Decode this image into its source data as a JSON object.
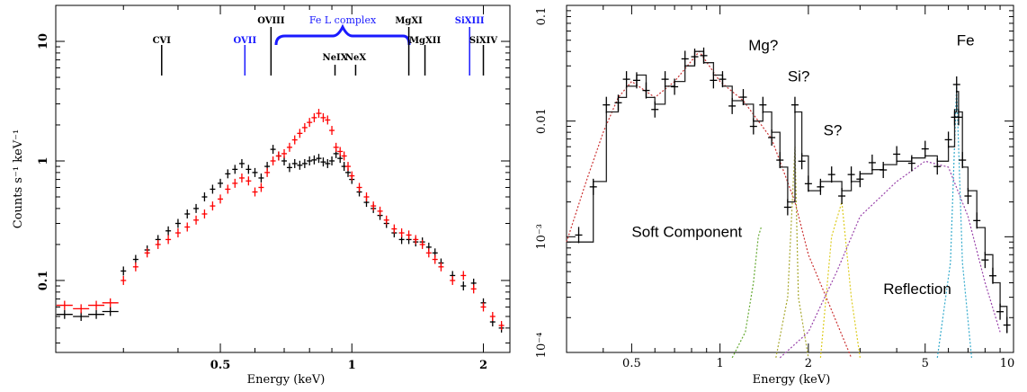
{
  "chart_data": [
    {
      "type": "scatter",
      "panel": "left",
      "xlabel": "Energy (keV)",
      "ylabel": "Counts s⁻¹ keV⁻¹",
      "xscale": "log",
      "yscale": "log",
      "xlim": [
        0.21,
        2.3
      ],
      "ylim": [
        0.025,
        20
      ],
      "x_ticks": [
        {
          "v": 0.5,
          "label": "0.5"
        },
        {
          "v": 1,
          "label": "1"
        },
        {
          "v": 2,
          "label": "2"
        }
      ],
      "y_ticks": [
        {
          "v": 0.1,
          "label": "0.1"
        },
        {
          "v": 1,
          "label": "1"
        },
        {
          "v": 10,
          "label": "10"
        }
      ],
      "annotation": "Fe L complex",
      "lines": [
        {
          "name": "CVI",
          "x": 0.367,
          "color": "#000000",
          "label_row": "top"
        },
        {
          "name": "OVII",
          "x": 0.569,
          "color": "#1a1aff",
          "label_row": "top"
        },
        {
          "name": "OVIII",
          "x": 0.653,
          "color": "#000000",
          "label_row": "upper"
        },
        {
          "name": "NeIX",
          "x": 0.915,
          "color": "#000000",
          "label_row": "lower"
        },
        {
          "name": "NeX",
          "x": 1.02,
          "color": "#000000",
          "label_row": "lower"
        },
        {
          "name": "MgXI",
          "x": 1.35,
          "color": "#000000",
          "label_row": "upper"
        },
        {
          "name": "MgXII",
          "x": 1.47,
          "color": "#000000",
          "label_row": "top"
        },
        {
          "name": "SiXIII",
          "x": 1.86,
          "color": "#1a1aff",
          "label_row": "upper"
        },
        {
          "name": "SiXIV",
          "x": 2.0,
          "color": "#000000",
          "label_row": "top"
        }
      ],
      "series": [
        {
          "color": "#000000",
          "points": [
            [
              0.22,
              0.052
            ],
            [
              0.24,
              0.05
            ],
            [
              0.26,
              0.052
            ],
            [
              0.28,
              0.055
            ],
            [
              0.3,
              0.12
            ],
            [
              0.32,
              0.15
            ],
            [
              0.34,
              0.18
            ],
            [
              0.36,
              0.22
            ],
            [
              0.38,
              0.26
            ],
            [
              0.4,
              0.3
            ],
            [
              0.42,
              0.36
            ],
            [
              0.44,
              0.4
            ],
            [
              0.46,
              0.5
            ],
            [
              0.48,
              0.58
            ],
            [
              0.5,
              0.65
            ],
            [
              0.52,
              0.78
            ],
            [
              0.54,
              0.85
            ],
            [
              0.56,
              0.95
            ],
            [
              0.58,
              0.85
            ],
            [
              0.6,
              0.8
            ],
            [
              0.62,
              0.72
            ],
            [
              0.64,
              0.9
            ],
            [
              0.66,
              1.25
            ],
            [
              0.68,
              1.1
            ],
            [
              0.7,
              1.0
            ],
            [
              0.72,
              0.88
            ],
            [
              0.74,
              0.95
            ],
            [
              0.76,
              0.92
            ],
            [
              0.78,
              0.95
            ],
            [
              0.8,
              1.0
            ],
            [
              0.82,
              1.02
            ],
            [
              0.84,
              1.05
            ],
            [
              0.86,
              0.98
            ],
            [
              0.88,
              0.95
            ],
            [
              0.9,
              1.0
            ],
            [
              0.92,
              1.15
            ],
            [
              0.94,
              1.05
            ],
            [
              0.96,
              0.9
            ],
            [
              0.98,
              0.8
            ],
            [
              1.0,
              0.7
            ],
            [
              1.04,
              0.55
            ],
            [
              1.08,
              0.45
            ],
            [
              1.12,
              0.4
            ],
            [
              1.16,
              0.35
            ],
            [
              1.2,
              0.3
            ],
            [
              1.25,
              0.25
            ],
            [
              1.3,
              0.22
            ],
            [
              1.35,
              0.22
            ],
            [
              1.4,
              0.21
            ],
            [
              1.45,
              0.21
            ],
            [
              1.5,
              0.19
            ],
            [
              1.55,
              0.17
            ],
            [
              1.6,
              0.14
            ],
            [
              1.7,
              0.11
            ],
            [
              1.8,
              0.09
            ],
            [
              1.9,
              0.095
            ],
            [
              2.0,
              0.065
            ],
            [
              2.1,
              0.045
            ],
            [
              2.2,
              0.04
            ]
          ]
        },
        {
          "color": "#ff0000",
          "points": [
            [
              0.22,
              0.062
            ],
            [
              0.24,
              0.058
            ],
            [
              0.26,
              0.062
            ],
            [
              0.28,
              0.065
            ],
            [
              0.3,
              0.1
            ],
            [
              0.32,
              0.13
            ],
            [
              0.34,
              0.17
            ],
            [
              0.36,
              0.2
            ],
            [
              0.38,
              0.22
            ],
            [
              0.4,
              0.25
            ],
            [
              0.42,
              0.28
            ],
            [
              0.44,
              0.32
            ],
            [
              0.46,
              0.36
            ],
            [
              0.48,
              0.42
            ],
            [
              0.5,
              0.48
            ],
            [
              0.52,
              0.58
            ],
            [
              0.54,
              0.65
            ],
            [
              0.56,
              0.72
            ],
            [
              0.58,
              0.68
            ],
            [
              0.6,
              0.55
            ],
            [
              0.62,
              0.6
            ],
            [
              0.64,
              0.8
            ],
            [
              0.66,
              1.0
            ],
            [
              0.68,
              1.1
            ],
            [
              0.7,
              1.15
            ],
            [
              0.72,
              1.3
            ],
            [
              0.74,
              1.5
            ],
            [
              0.76,
              1.7
            ],
            [
              0.78,
              1.9
            ],
            [
              0.8,
              2.1
            ],
            [
              0.82,
              2.3
            ],
            [
              0.84,
              2.5
            ],
            [
              0.86,
              2.3
            ],
            [
              0.88,
              2.2
            ],
            [
              0.9,
              1.8
            ],
            [
              0.92,
              1.3
            ],
            [
              0.94,
              1.2
            ],
            [
              0.96,
              1.1
            ],
            [
              0.98,
              0.9
            ],
            [
              1.0,
              0.75
            ],
            [
              1.04,
              0.6
            ],
            [
              1.08,
              0.5
            ],
            [
              1.12,
              0.42
            ],
            [
              1.16,
              0.38
            ],
            [
              1.2,
              0.32
            ],
            [
              1.25,
              0.27
            ],
            [
              1.3,
              0.25
            ],
            [
              1.35,
              0.24
            ],
            [
              1.4,
              0.22
            ],
            [
              1.45,
              0.2
            ],
            [
              1.5,
              0.17
            ],
            [
              1.55,
              0.15
            ],
            [
              1.6,
              0.13
            ],
            [
              1.7,
              0.1
            ],
            [
              1.8,
              0.11
            ],
            [
              1.9,
              0.085
            ],
            [
              2.0,
              0.06
            ],
            [
              2.1,
              0.05
            ],
            [
              2.2,
              0.042
            ]
          ]
        }
      ]
    },
    {
      "type": "line",
      "panel": "right",
      "xlabel": "Energy (keV)",
      "ylabel": "",
      "xscale": "log",
      "yscale": "log",
      "xlim": [
        0.3,
        10
      ],
      "ylim": [
        0.0001,
        0.1
      ],
      "x_ticks": [
        {
          "v": 0.5,
          "label": "0.5"
        },
        {
          "v": 1,
          "label": "1"
        },
        {
          "v": 2,
          "label": "2"
        },
        {
          "v": 5,
          "label": "5"
        },
        {
          "v": 10,
          "label": "10"
        }
      ],
      "y_ticks": [
        {
          "v": 0.0001,
          "label": "10⁻⁴"
        },
        {
          "v": 0.001,
          "label": "10⁻³"
        },
        {
          "v": 0.01,
          "label": "0.01"
        },
        {
          "v": 0.1,
          "label": "0.1"
        }
      ],
      "annotations": [
        {
          "text": "Mg?",
          "x": 1.25,
          "y": 0.041
        },
        {
          "text": "Si?",
          "x": 1.7,
          "y": 0.022
        },
        {
          "text": "S?",
          "x": 2.25,
          "y": 0.0075
        },
        {
          "text": "Fe",
          "x": 6.4,
          "y": 0.045
        },
        {
          "text": "Soft Component",
          "x": 0.5,
          "y": 0.001
        },
        {
          "text": "Reflection",
          "x": 3.6,
          "y": 0.00032
        }
      ],
      "model_x": [
        0.3,
        0.33,
        0.37,
        0.41,
        0.45,
        0.48,
        0.52,
        0.56,
        0.6,
        0.65,
        0.7,
        0.76,
        0.82,
        0.88,
        0.95,
        1.02,
        1.1,
        1.2,
        1.3,
        1.4,
        1.5,
        1.6,
        1.7,
        1.8,
        1.9,
        2.0,
        2.2,
        2.4,
        2.6,
        2.8,
        3.0,
        3.3,
        3.6,
        4.0,
        4.5,
        5.0,
        5.5,
        6.0,
        6.3,
        6.4,
        6.5,
        6.7,
        7.0,
        7.5,
        8.0,
        8.5,
        9.0,
        9.5
      ],
      "model_y": [
        0.0009,
        0.0009,
        0.003,
        0.012,
        0.016,
        0.02,
        0.025,
        0.016,
        0.014,
        0.02,
        0.022,
        0.03,
        0.04,
        0.032,
        0.025,
        0.02,
        0.015,
        0.014,
        0.01,
        0.012,
        0.008,
        0.004,
        0.002,
        0.012,
        0.005,
        0.0025,
        0.003,
        0.003,
        0.0025,
        0.003,
        0.0035,
        0.0038,
        0.0042,
        0.0045,
        0.0048,
        0.005,
        0.0045,
        0.006,
        0.012,
        0.018,
        0.012,
        0.004,
        0.0025,
        0.0012,
        0.0007,
        0.0004,
        0.00025,
        0.00015
      ]
    }
  ]
}
